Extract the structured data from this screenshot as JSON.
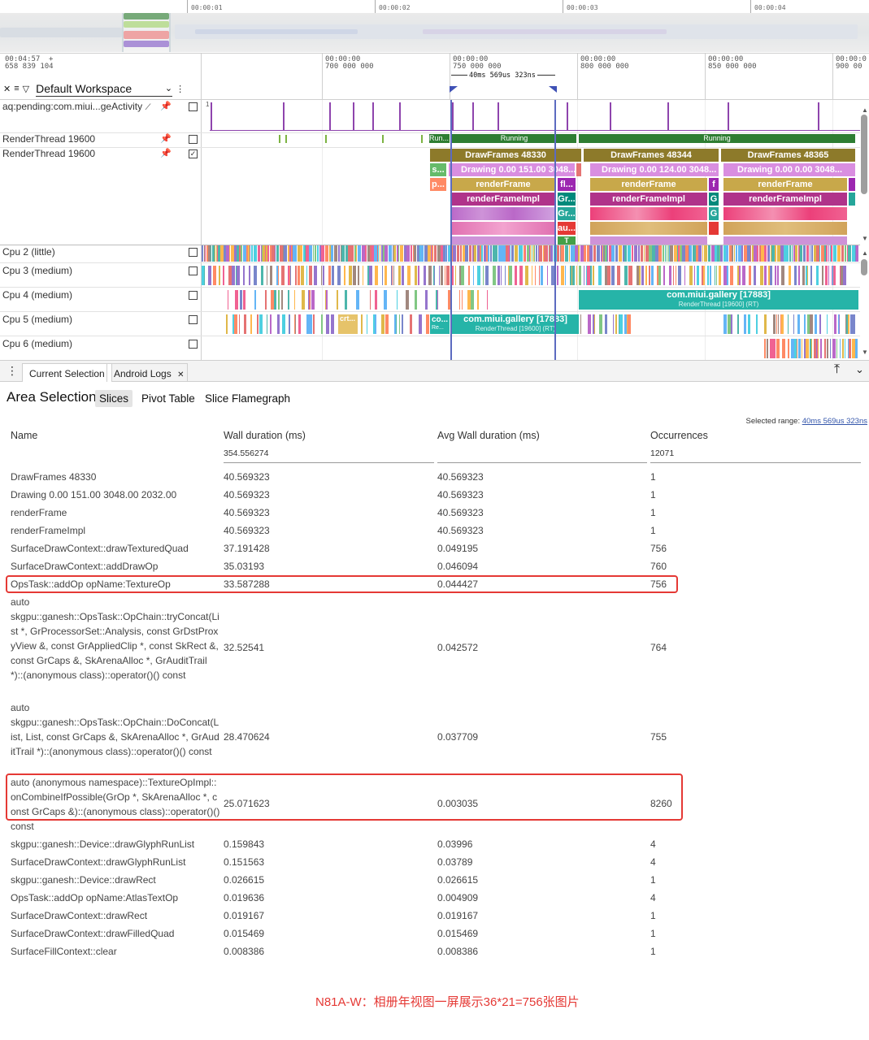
{
  "overview": {
    "ticks": [
      "00:00:01",
      "00:00:02",
      "00:00:03",
      "00:00:04"
    ]
  },
  "header": {
    "start_time": "00:04:57",
    "start_time_plus": "+",
    "start_ns": "658 839 104",
    "workspace": "Default Workspace",
    "ticks": [
      {
        "t": "00:00:00",
        "ns": "700 000 000"
      },
      {
        "t": "00:00:00",
        "ns": "750 000 000"
      },
      {
        "t": "00:00:00",
        "ns": "800 000 000"
      },
      {
        "t": "00:00:00",
        "ns": "850 000 000"
      },
      {
        "t": "00:00:0",
        "ns": "900 00"
      }
    ],
    "selection_duration": "40ms 569us 323ns"
  },
  "tracks": {
    "aq_label": "aq:pending:com.miui...geActivity",
    "aq_value": "1",
    "rt1_label": "RenderThread 19600",
    "rt2_label": "RenderThread 19600",
    "cpu_labels": [
      "Cpu 2 (little)",
      "Cpu 3 (medium)",
      "Cpu 4 (medium)",
      "Cpu 5 (medium)",
      "Cpu 6 (medium)"
    ],
    "state_run_short": "Run...",
    "state_running": "Running",
    "slices": {
      "df1": "DrawFrames 48330",
      "df2": "DrawFrames 48344",
      "df3": "DrawFrames 48365",
      "drawing1": "Drawing  0.00 151.00 3048...",
      "drawing2": "Drawing  0.00 124.00 3048...",
      "drawing3": "Drawing  0.00  0.00 3048...",
      "rf": "renderFrame",
      "rfi": "renderFrameImpl",
      "fl": "fl...",
      "gr": "Gr...",
      "au": "au...",
      "t": "T",
      "f": "f",
      "g": "G",
      "s": "s...",
      "p": "p..."
    },
    "cpu4_proc": "com.miui.gallery [17883]",
    "cpu4_thread": "RenderThread [19600] (RT)",
    "cpu5_proc": "com.miui.gallery [17883]",
    "cpu5_thread": "RenderThread [19600] (RT)",
    "cpu5_co": "co...",
    "cpu5_co_sub": "Re...",
    "cpu5_crt": "crt..."
  },
  "tabs": {
    "current": "Current Selection",
    "logs": "Android Logs",
    "close": "✕"
  },
  "panel": {
    "title": "Area Selection",
    "subtabs": [
      "Slices",
      "Pivot Table",
      "Slice Flamegraph"
    ],
    "range_label": "Selected range:",
    "range_value": "40ms 569us 323ns",
    "columns": [
      "Name",
      "Wall duration (ms)",
      "Avg Wall duration (ms)",
      "Occurrences"
    ],
    "totals": {
      "wall": "354.556274",
      "occ": "12071"
    },
    "rows": [
      {
        "name": "DrawFrames 48330",
        "wall": "40.569323",
        "avg": "40.569323",
        "occ": "1"
      },
      {
        "name": "Drawing 0.00 151.00 3048.00 2032.00",
        "wall": "40.569323",
        "avg": "40.569323",
        "occ": "1"
      },
      {
        "name": "renderFrame",
        "wall": "40.569323",
        "avg": "40.569323",
        "occ": "1"
      },
      {
        "name": "renderFrameImpl",
        "wall": "40.569323",
        "avg": "40.569323",
        "occ": "1"
      },
      {
        "name": "SurfaceDrawContext::drawTexturedQuad",
        "wall": "37.191428",
        "avg": "0.049195",
        "occ": "756"
      },
      {
        "name": "SurfaceDrawContext::addDrawOp",
        "wall": "35.03193",
        "avg": "0.046094",
        "occ": "760"
      },
      {
        "name": "OpsTask::addOp opName:TextureOp",
        "wall": "33.587288",
        "avg": "0.044427",
        "occ": "756"
      },
      {
        "name": "auto\nskgpu::ganesh::OpsTask::OpChain::tryConcat(List *, GrProcessorSet::Analysis, const GrDstProxyView &, const GrAppliedClip *, const SkRect &, const GrCaps &, SkArenaAlloc *, GrAuditTrail *)::(anonymous class)::operator()() const",
        "wall": "32.52541",
        "avg": "0.042572",
        "occ": "764"
      },
      {
        "name": "auto\nskgpu::ganesh::OpsTask::OpChain::DoConcat(List, List, const GrCaps &, SkArenaAlloc *, GrAuditTrail *)::(anonymous class)::operator()() const",
        "wall": "28.470624",
        "avg": "0.037709",
        "occ": "755"
      },
      {
        "name": "auto (anonymous namespace)::TextureOpImpl::onCombineIfPossible(GrOp *, SkArenaAlloc *, const GrCaps &)::(anonymous class)::operator()() const",
        "wall": "25.071623",
        "avg": "0.003035",
        "occ": "8260"
      },
      {
        "name": "skgpu::ganesh::Device::drawGlyphRunList",
        "wall": "0.159843",
        "avg": "0.03996",
        "occ": "4"
      },
      {
        "name": "SurfaceDrawContext::drawGlyphRunList",
        "wall": "0.151563",
        "avg": "0.03789",
        "occ": "4"
      },
      {
        "name": "skgpu::ganesh::Device::drawRect",
        "wall": "0.026615",
        "avg": "0.026615",
        "occ": "1"
      },
      {
        "name": "OpsTask::addOp opName:AtlasTextOp",
        "wall": "0.019636",
        "avg": "0.004909",
        "occ": "4"
      },
      {
        "name": "SurfaceDrawContext::drawRect",
        "wall": "0.019167",
        "avg": "0.019167",
        "occ": "1"
      },
      {
        "name": "SurfaceDrawContext::drawFilledQuad",
        "wall": "0.015469",
        "avg": "0.015469",
        "occ": "1"
      },
      {
        "name": "SurfaceFillContext::clear",
        "wall": "0.008386",
        "avg": "0.008386",
        "occ": "1"
      }
    ],
    "footnote": "N81A-W：相册年视图一屏展示36*21=756张图片"
  },
  "colors": {
    "highlight": "#e53935",
    "running": "#2e7d32",
    "drawframes": "#8d7a2a",
    "drawing": "#d98ee0",
    "renderframe": "#c8a84a",
    "renderframeimpl": "#b0338a",
    "teal": "#26b4a8"
  }
}
